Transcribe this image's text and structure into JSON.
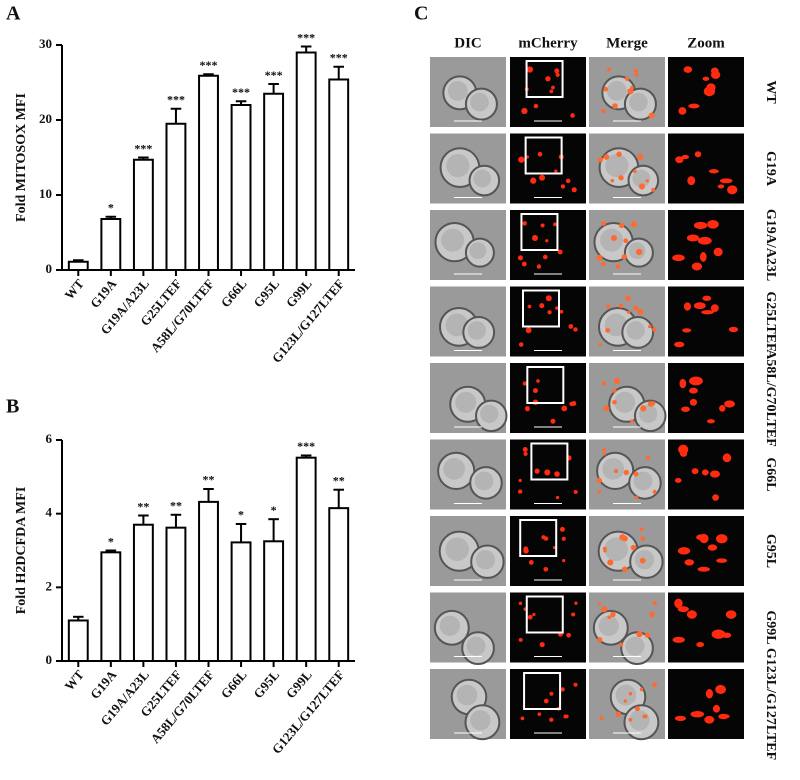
{
  "chart_data": [
    {
      "type": "bar",
      "panel": "A",
      "ylabel": "Fold MITOSOX MFI",
      "categories": [
        "WT",
        "G19A",
        "G19A/A23L",
        "G25LTEF",
        "A58L/G70LTEF",
        "G66L",
        "G95L",
        "G99L",
        "G123L/G127LTEF"
      ],
      "values": [
        1.1,
        6.8,
        14.7,
        19.5,
        25.9,
        22.0,
        23.5,
        29.0,
        25.4
      ],
      "errors": [
        0.2,
        0.3,
        0.3,
        2.0,
        0.2,
        0.5,
        1.3,
        0.8,
        1.7
      ],
      "annotations": [
        null,
        "*",
        "***",
        "***",
        "***",
        "***",
        "***",
        "***",
        "***"
      ],
      "color": "#ffffff",
      "ylim": [
        0,
        30
      ],
      "yticks": [
        0,
        10,
        20,
        30
      ]
    },
    {
      "type": "bar",
      "panel": "B",
      "ylabel": "Fold H2DCFDA MFI",
      "categories": [
        "WT",
        "G19A",
        "G19A/A23L",
        "G25LTEF",
        "A58L/G70LTEF",
        "G66L",
        "G95L",
        "G99L",
        "G123L/G127LTEF"
      ],
      "values": [
        1.1,
        2.95,
        3.7,
        3.62,
        4.32,
        3.22,
        3.25,
        5.52,
        4.15
      ],
      "errors": [
        0.1,
        0.05,
        0.25,
        0.35,
        0.35,
        0.5,
        0.6,
        0.06,
        0.5
      ],
      "annotations": [
        null,
        "*",
        "**",
        "**",
        "**",
        "*",
        "*",
        "***",
        "**"
      ],
      "color": "#ffffff",
      "ylim": [
        0,
        6
      ],
      "yticks": [
        0,
        2,
        4,
        6
      ]
    }
  ],
  "panel_c": {
    "label": "C",
    "columns": [
      "DIC",
      "mCherry",
      "Merge",
      "Zoom"
    ],
    "rows": [
      "WT",
      "G19A",
      "G19A/A23L",
      "G25LTEF",
      "A58L/G70LTEF",
      "G66L",
      "G95L",
      "G99L",
      "G123L/G127LTEF"
    ]
  }
}
